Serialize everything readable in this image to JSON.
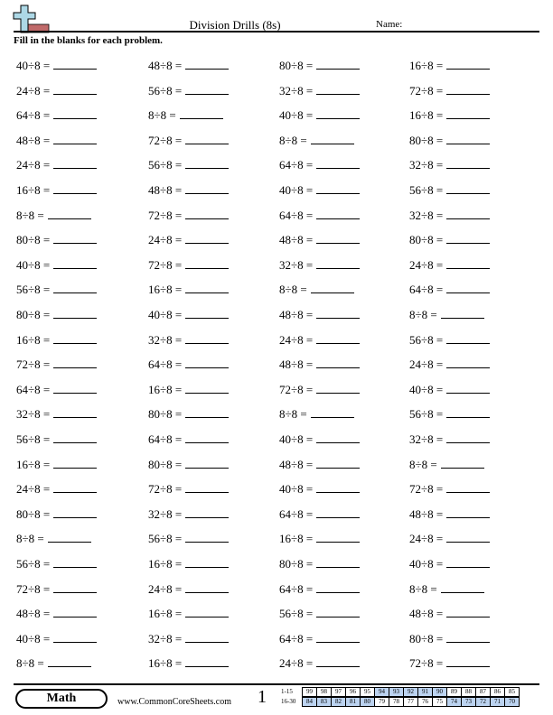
{
  "header": {
    "title": "Division Drills (8s)",
    "name_label": "Name:",
    "instructions": "Fill in the blanks for each problem."
  },
  "colors": {
    "logo_plus": "#add8e6",
    "logo_bar": "#c06a6a",
    "key_highlight": "#bcd3f0"
  },
  "problems": [
    [
      "40÷8 =",
      "24÷8 =",
      "64÷8 =",
      "48÷8 =",
      "24÷8 =",
      "16÷8 =",
      "8÷8 =",
      "80÷8 =",
      "40÷8 =",
      "56÷8 =",
      "80÷8 =",
      "16÷8 =",
      "72÷8 =",
      "64÷8 =",
      "32÷8 =",
      "56÷8 =",
      "16÷8 =",
      "24÷8 =",
      "80÷8 =",
      "8÷8 =",
      "56÷8 =",
      "72÷8 =",
      "48÷8 =",
      "40÷8 =",
      "8÷8 ="
    ],
    [
      "48÷8 =",
      "56÷8 =",
      "8÷8 =",
      "72÷8 =",
      "56÷8 =",
      "48÷8 =",
      "72÷8 =",
      "24÷8 =",
      "72÷8 =",
      "16÷8 =",
      "40÷8 =",
      "32÷8 =",
      "64÷8 =",
      "16÷8 =",
      "80÷8 =",
      "64÷8 =",
      "80÷8 =",
      "72÷8 =",
      "32÷8 =",
      "56÷8 =",
      "16÷8 =",
      "24÷8 =",
      "16÷8 =",
      "32÷8 =",
      "16÷8 ="
    ],
    [
      "80÷8 =",
      "32÷8 =",
      "40÷8 =",
      "8÷8 =",
      "64÷8 =",
      "40÷8 =",
      "64÷8 =",
      "48÷8 =",
      "32÷8 =",
      "8÷8 =",
      "48÷8 =",
      "24÷8 =",
      "48÷8 =",
      "72÷8 =",
      "8÷8 =",
      "40÷8 =",
      "48÷8 =",
      "40÷8 =",
      "64÷8 =",
      "16÷8 =",
      "80÷8 =",
      "64÷8 =",
      "56÷8 =",
      "64÷8 =",
      "24÷8 ="
    ],
    [
      "16÷8 =",
      "72÷8 =",
      "16÷8 =",
      "80÷8 =",
      "32÷8 =",
      "56÷8 =",
      "32÷8 =",
      "80÷8 =",
      "24÷8 =",
      "64÷8 =",
      "8÷8 =",
      "56÷8 =",
      "24÷8 =",
      "40÷8 =",
      "56÷8 =",
      "32÷8 =",
      "8÷8 =",
      "72÷8 =",
      "48÷8 =",
      "24÷8 =",
      "40÷8 =",
      "8÷8 =",
      "48÷8 =",
      "80÷8 =",
      "72÷8 ="
    ]
  ],
  "footer": {
    "subject": "Math",
    "site": "www.CommonCoreSheets.com",
    "page": "1",
    "key_rows": [
      {
        "label": "1-15",
        "values": [
          "99",
          "98",
          "97",
          "96",
          "95",
          "94",
          "93",
          "92",
          "91",
          "90",
          "89",
          "88",
          "87",
          "86",
          "85"
        ],
        "highlight": [
          false,
          false,
          false,
          false,
          false,
          true,
          true,
          true,
          true,
          true,
          false,
          false,
          false,
          false,
          false
        ]
      },
      {
        "label": "16-30",
        "values": [
          "84",
          "83",
          "82",
          "81",
          "80",
          "79",
          "78",
          "77",
          "76",
          "75",
          "74",
          "73",
          "72",
          "71",
          "70"
        ],
        "highlight": [
          true,
          true,
          true,
          true,
          true,
          false,
          false,
          false,
          false,
          false,
          true,
          true,
          true,
          true,
          true
        ]
      }
    ]
  }
}
